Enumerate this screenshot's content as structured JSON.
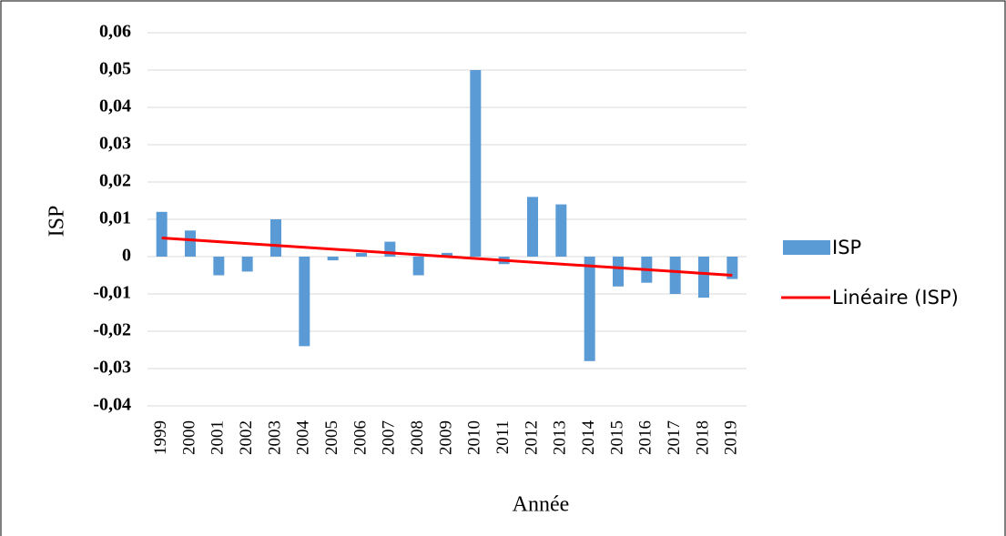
{
  "chart_data": {
    "type": "bar",
    "x_label": "Année",
    "y_label": "ISP",
    "categories": [
      "1999",
      "2000",
      "2001",
      "2002",
      "2003",
      "2004",
      "2005",
      "2006",
      "2007",
      "2008",
      "2009",
      "2010",
      "2011",
      "2012",
      "2013",
      "2014",
      "2015",
      "2016",
      "2017",
      "2018",
      "2019"
    ],
    "series": [
      {
        "name": "ISP",
        "color": "#5b9bd5",
        "values": [
          0.012,
          0.007,
          -0.005,
          -0.004,
          0.01,
          -0.024,
          -0.001,
          0.001,
          0.004,
          -0.005,
          0.001,
          0.05,
          -0.002,
          0.016,
          0.014,
          -0.028,
          -0.008,
          -0.007,
          -0.01,
          -0.011,
          -0.006
        ]
      }
    ],
    "trend": {
      "name": "Linéaire (ISP)",
      "color": "#ff0000",
      "values": [
        0.005,
        -0.005
      ]
    },
    "ylim": [
      -0.04,
      0.06
    ],
    "yticks": [
      {
        "value": -0.04,
        "label": "-0,04"
      },
      {
        "value": -0.03,
        "label": "-0,03"
      },
      {
        "value": -0.02,
        "label": "-0,02"
      },
      {
        "value": -0.01,
        "label": "-0,01"
      },
      0,
      {
        "value": 0.01,
        "label": "0,01"
      },
      {
        "value": 0.02,
        "label": "0,02"
      },
      {
        "value": 0.03,
        "label": "0,03"
      },
      {
        "value": 0.04,
        "label": "0,04"
      },
      {
        "value": 0.05,
        "label": "0,05"
      },
      {
        "value": 0.06,
        "label": "0,06"
      }
    ],
    "grid": true,
    "legend": "right"
  }
}
